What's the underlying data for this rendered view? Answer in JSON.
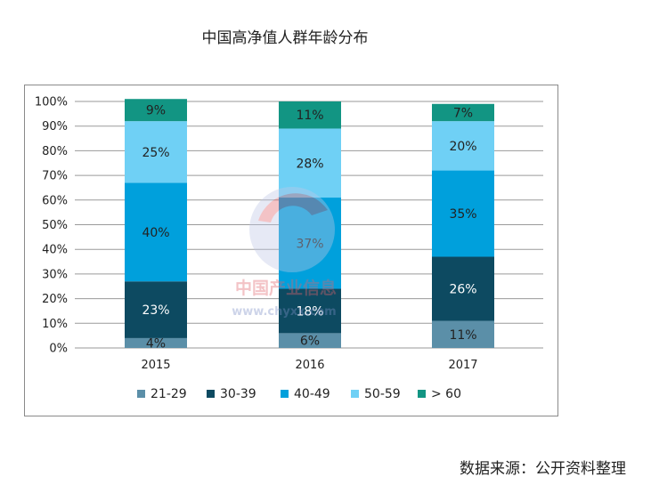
{
  "title": "中国高净值人群年龄分布",
  "source": "数据来源：公开资料整理",
  "watermark": {
    "name": "中国产业信息",
    "url": "www.chyxx.com"
  },
  "chart_data": {
    "type": "bar",
    "stacked": true,
    "categories": [
      "2015",
      "2016",
      "2017"
    ],
    "ylim": [
      0,
      100
    ],
    "yticks": [
      "0%",
      "10%",
      "20%",
      "30%",
      "40%",
      "50%",
      "60%",
      "70%",
      "80%",
      "90%",
      "100%"
    ],
    "grid": true,
    "legend_position": "bottom",
    "series": [
      {
        "name": "21-29",
        "color": "#5b8fa8",
        "values": [
          4,
          6,
          11
        ],
        "labels": [
          "4%",
          "6%",
          "11%"
        ],
        "label_color": "#222222"
      },
      {
        "name": "30-39",
        "color": "#0d4a61",
        "values": [
          23,
          18,
          26
        ],
        "labels": [
          "23%",
          "18%",
          "26%"
        ],
        "label_color": "#ffffff"
      },
      {
        "name": "40-49",
        "color": "#00a0dc",
        "values": [
          40,
          37,
          35
        ],
        "labels": [
          "40%",
          "37%",
          "35%"
        ],
        "label_color": "#222222"
      },
      {
        "name": "50-59",
        "color": "#6fd0f5",
        "values": [
          25,
          28,
          20
        ],
        "labels": [
          "25%",
          "28%",
          "20%"
        ],
        "label_color": "#222222"
      },
      {
        "name": "> 60",
        "color": "#129583",
        "values": [
          9,
          11,
          7
        ],
        "labels": [
          "9%",
          "11%",
          "7%"
        ],
        "label_color": "#222222"
      }
    ]
  }
}
